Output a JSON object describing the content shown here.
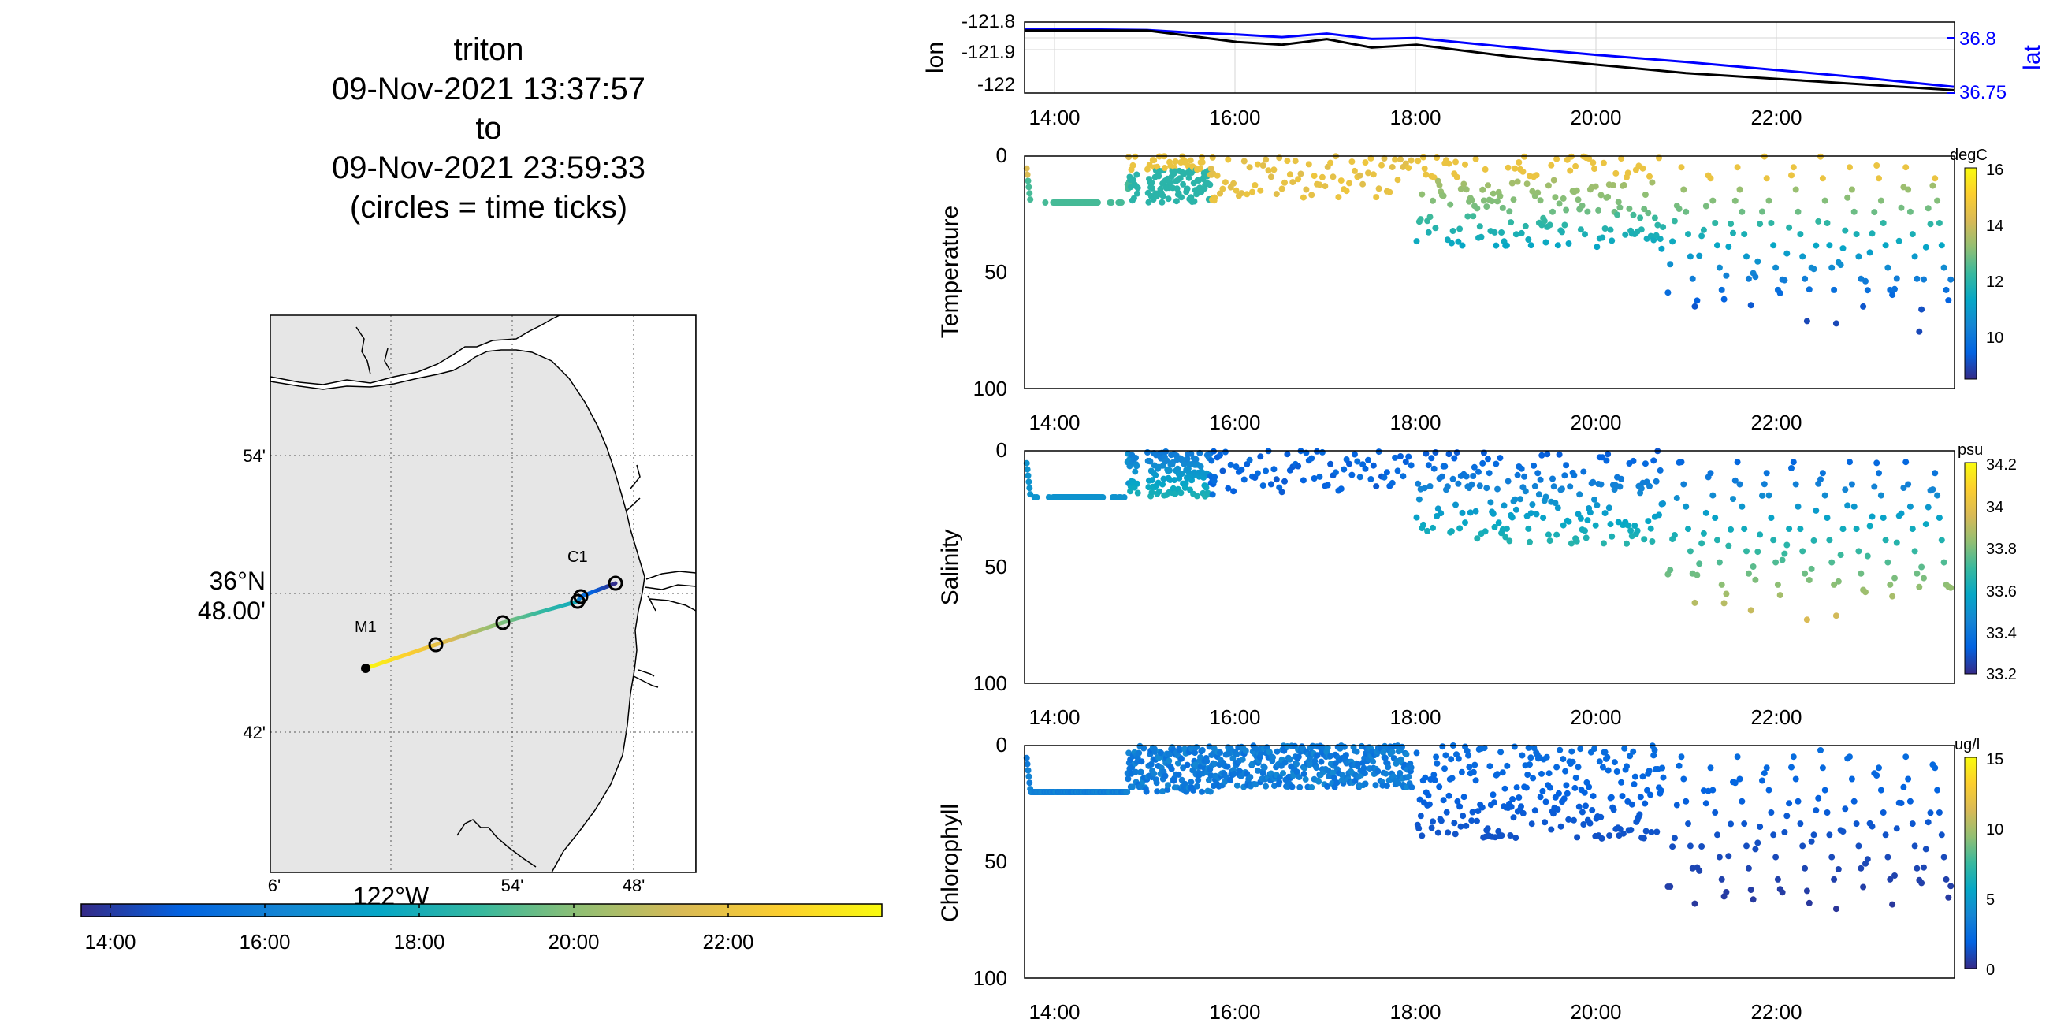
{
  "title_lines": [
    "triton",
    "09-Nov-2021 13:37:57",
    "to",
    "09-Nov-2021 23:59:33",
    "(circles = time ticks)"
  ],
  "colors": {
    "black": "#000000",
    "lat_blue": "#0000ff",
    "land": "#e6e6e6",
    "parula": [
      "#352a87",
      "#0363e1",
      "#1485d4",
      "#06a7c6",
      "#38b99e",
      "#92bf73",
      "#d9ba56",
      "#fcce2e",
      "#f9fb0e"
    ]
  },
  "map": {
    "lon_ticks": [
      "6'",
      "54'",
      "48'"
    ],
    "lon_label": "122°W",
    "lat_ticks": [
      "54'",
      "42'"
    ],
    "lat_label_line1": "36°N",
    "lat_label_line2": "48.00'",
    "station_labels": [
      "M1",
      "C1"
    ],
    "colorbar_ticks": [
      "14:00",
      "16:00",
      "18:00",
      "20:00",
      "22:00"
    ]
  },
  "chart_data": [
    {
      "type": "line",
      "name": "position",
      "x_ticks": [
        "14:00",
        "16:00",
        "18:00",
        "20:00",
        "22:00"
      ],
      "x": [
        "13:38",
        "14:00",
        "15:00",
        "15:30",
        "16:00",
        "16:30",
        "17:00",
        "17:30",
        "18:00",
        "19:00",
        "20:00",
        "21:00",
        "22:00",
        "23:00",
        "23:59"
      ],
      "ylabel_left": "lon",
      "ylabel_right": "lat",
      "yticks_left": [
        "-121.8",
        "-121.9",
        "-122"
      ],
      "yticks_right": [
        "36.8",
        "36.75"
      ],
      "ylim_left": [
        -122.03,
        -121.78
      ],
      "ylim_right": [
        36.745,
        36.825
      ],
      "series": [
        {
          "name": "lon",
          "axis": "left",
          "values": [
            -121.81,
            -121.81,
            -121.81,
            -121.83,
            -121.85,
            -121.86,
            -121.84,
            -121.87,
            -121.86,
            -121.9,
            -121.93,
            -121.96,
            -121.98,
            -122.0,
            -122.02
          ]
        },
        {
          "name": "lat",
          "axis": "right",
          "values": [
            36.817,
            36.817,
            36.816,
            36.813,
            36.811,
            36.808,
            36.812,
            36.806,
            36.807,
            36.797,
            36.788,
            36.78,
            36.771,
            36.762,
            36.752
          ]
        }
      ],
      "grid": true
    },
    {
      "type": "scatter",
      "name": "temperature",
      "ylabel": "Temperature",
      "x_ticks": [
        "14:00",
        "16:00",
        "18:00",
        "20:00",
        "22:00"
      ],
      "y_ticks": [
        "0",
        "50",
        "100"
      ],
      "ylim": [
        100,
        0
      ],
      "colorbar_label": "degC",
      "colorbar_ticks": [
        "16",
        "14",
        "12",
        "10"
      ],
      "clim": [
        8.5,
        16
      ]
    },
    {
      "type": "scatter",
      "name": "salinity",
      "ylabel": "Salinity",
      "x_ticks": [
        "14:00",
        "16:00",
        "18:00",
        "20:00",
        "22:00"
      ],
      "y_ticks": [
        "0",
        "50",
        "100"
      ],
      "ylim": [
        100,
        0
      ],
      "colorbar_label": "psu",
      "colorbar_ticks": [
        "34.2",
        "34",
        "33.8",
        "33.6",
        "33.4",
        "33.2"
      ],
      "clim": [
        33.2,
        34.2
      ]
    },
    {
      "type": "scatter",
      "name": "chlorophyll",
      "ylabel": "Chlorophyll",
      "x_ticks": [
        "14:00",
        "16:00",
        "18:00",
        "20:00",
        "22:00"
      ],
      "y_ticks": [
        "0",
        "50",
        "100"
      ],
      "ylim": [
        100,
        0
      ],
      "colorbar_label": "ug/l",
      "colorbar_ticks": [
        "15",
        "10",
        "5",
        "0"
      ],
      "clim": [
        0,
        15
      ]
    }
  ]
}
